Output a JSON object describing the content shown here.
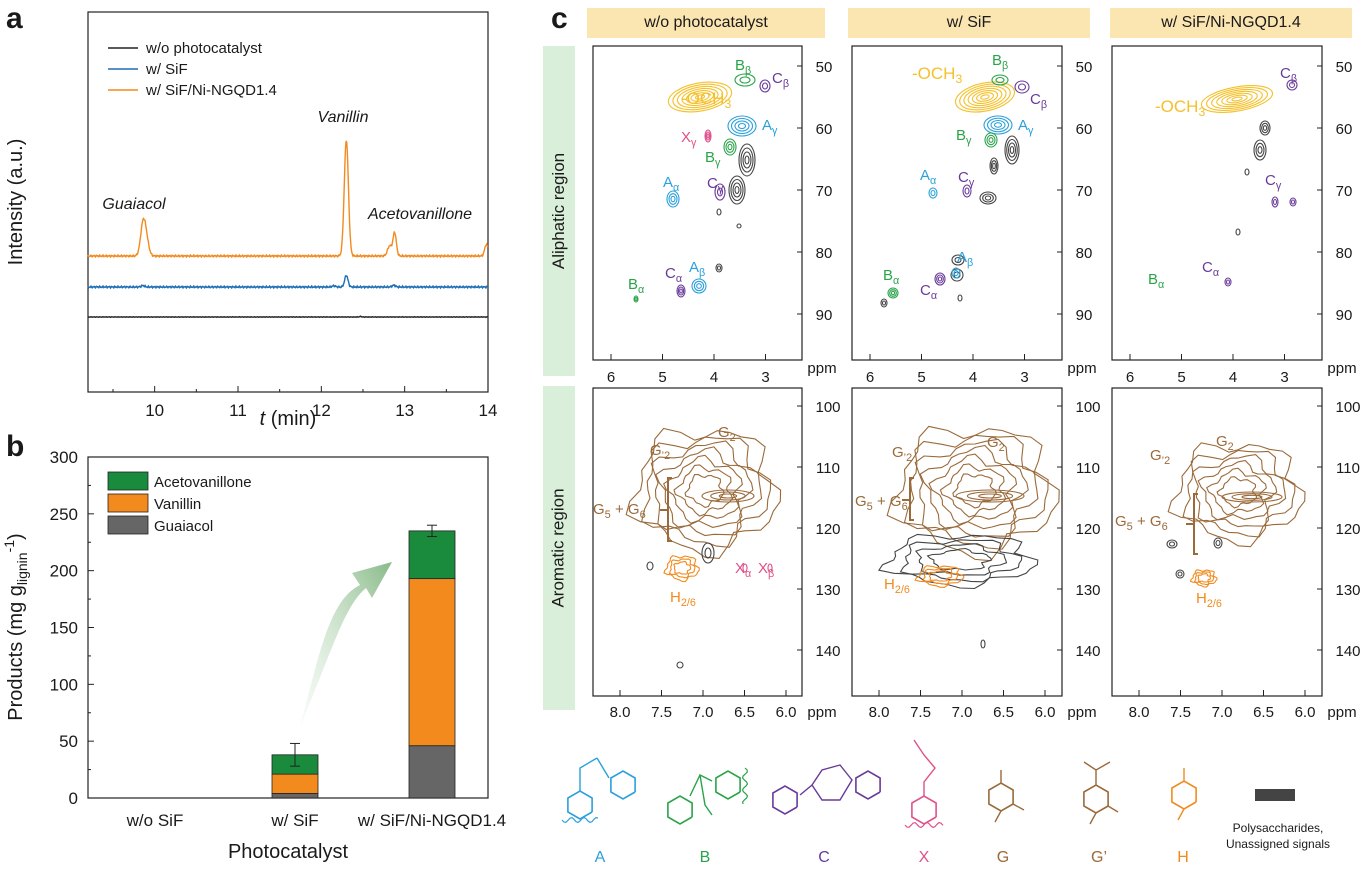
{
  "panel_labels": {
    "a": "a",
    "b": "b",
    "c": "c"
  },
  "colors": {
    "orange": "#f28a1e",
    "blue": "#1f6fb5",
    "black": "#222222",
    "green": "#1a8a3c",
    "gray": "#666666",
    "brown": "#9a6a3a",
    "purple": "#6a3a9a",
    "pink": "#e0508a",
    "cyan": "#2aa0dc",
    "lgreen": "#2aa34a",
    "yellow": "#f5c02a",
    "dark": "#444444",
    "hdr_bg": "#fbe5b0",
    "side_bg": "#d9efd9"
  },
  "chart_data": [
    {
      "id": "a",
      "type": "line",
      "xlabel": "t (min)",
      "ylabel": "Intensity (a.u.)",
      "xlim": [
        9.2,
        14.0
      ],
      "xticks": [
        "10",
        "11",
        "12",
        "13",
        "14"
      ],
      "legend": [
        "w/o photocatalyst",
        "w/ SiF",
        "w/ SiF/Ni-NGQD1.4"
      ],
      "legend_position": "top-left",
      "series": [
        {
          "name": "w/o photocatalyst",
          "color": "#222222",
          "offset": 0.0,
          "peaks": [
            [
              12.47,
              0.02,
              0.01
            ]
          ]
        },
        {
          "name": "w/ SiF",
          "color": "#1f6fb5",
          "offset": 1.0,
          "peaks": [
            [
              9.86,
              0.05,
              0.02
            ],
            [
              12.15,
              0.04,
              0.02
            ],
            [
              12.3,
              0.4,
              0.02
            ],
            [
              12.87,
              0.06,
              0.02
            ]
          ]
        },
        {
          "name": "w/ SiF/Ni-NGQD1.4",
          "color": "#f28a1e",
          "offset": 2.0,
          "peaks": [
            [
              9.86,
              1.05,
              0.03
            ],
            [
              9.9,
              0.5,
              0.03
            ],
            [
              12.3,
              4.0,
              0.025
            ],
            [
              12.82,
              0.35,
              0.025
            ],
            [
              12.88,
              0.8,
              0.02
            ],
            [
              13.98,
              0.4,
              0.02
            ]
          ]
        }
      ],
      "annotations": [
        {
          "text": "Guaiacol",
          "x": 9.83
        },
        {
          "text": "Vanillin",
          "x": 12.3
        },
        {
          "text": "Acetovanillone",
          "x": 13.2
        }
      ]
    },
    {
      "id": "b",
      "type": "bar",
      "stacked": true,
      "xlabel": "Photocatalyst",
      "ylabel": "Products (mg g",
      "ylabel_sub": "lignin",
      "ylabel_sup": "-1",
      "ylabel_end": ")",
      "ylim": [
        0,
        300
      ],
      "yticks": [
        "0",
        "50",
        "100",
        "150",
        "200",
        "250",
        "300"
      ],
      "categories": [
        "w/o SiF",
        "w/ SiF",
        "w/ SiF/Ni-NGQD1.4"
      ],
      "series": [
        {
          "name": "Guaiacol",
          "color": "#666666",
          "values": [
            0,
            4,
            46
          ]
        },
        {
          "name": "Vanillin",
          "color": "#f28a1e",
          "values": [
            0,
            17,
            147
          ]
        },
        {
          "name": "Acetovanillone",
          "color": "#1a8a3c",
          "values": [
            0,
            17,
            42
          ]
        }
      ],
      "error": [
        0,
        10,
        5
      ],
      "legend_order": [
        "Acetovanillone",
        "Vanillin",
        "Guaiacol"
      ],
      "legend_position": "top-left"
    }
  ],
  "panel_c": {
    "headers": [
      "w/o photocatalyst",
      "w/ SiF",
      "w/ SiF/Ni-NGQD1.4"
    ],
    "row_labels": [
      "Aliphatic region",
      "Aromatic region"
    ],
    "ppm": "ppm",
    "ali_xticks": [
      "6",
      "5",
      "4",
      "3"
    ],
    "ali_yticks": [
      "50",
      "60",
      "70",
      "80",
      "90"
    ],
    "aro_xticks": [
      "8.0",
      "7.5",
      "7.0",
      "6.5",
      "6.0"
    ],
    "aro_yticks": [
      "100",
      "110",
      "120",
      "130",
      "140"
    ],
    "och3": "-OCH",
    "three": "3",
    "letters": {
      "A": "A",
      "B": "B",
      "C": "C",
      "X": "X",
      "G": "G",
      "H": "H"
    },
    "subs": {
      "alpha": "α",
      "beta": "β",
      "gamma": "γ",
      "g2": "2",
      "g2p": "’2",
      "g5": "5",
      "g6": "6",
      "h26": "2/6"
    },
    "plus": "+",
    "structures": [
      "A",
      "B",
      "C",
      "X",
      "G",
      "G’",
      "H"
    ],
    "legend_text": [
      "Polysaccharides,",
      "Unassigned signals"
    ]
  }
}
